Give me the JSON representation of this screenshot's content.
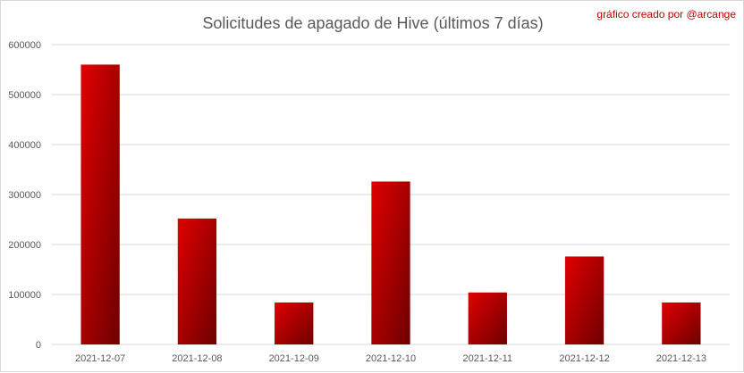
{
  "chart_data": {
    "type": "bar",
    "title": "Solicitudes de apagado de Hive (últimos 7 días)",
    "annotation": "gráfico creado por @arcange",
    "categories": [
      "2021-12-07",
      "2021-12-08",
      "2021-12-09",
      "2021-12-10",
      "2021-12-11",
      "2021-12-12",
      "2021-12-13"
    ],
    "values": [
      560000,
      252000,
      84000,
      326000,
      104000,
      176000,
      84000
    ],
    "ylim": [
      0,
      600000
    ],
    "yticks": [
      0,
      100000,
      200000,
      300000,
      400000,
      500000,
      600000
    ],
    "grid": true,
    "legend": "none",
    "xlabel": "",
    "ylabel": "",
    "colors": {
      "bar_light": "#e00000",
      "bar_dark": "#6e0000",
      "grid": "#d9d9d9",
      "text": "#595959",
      "annotation": "#c00000"
    }
  }
}
